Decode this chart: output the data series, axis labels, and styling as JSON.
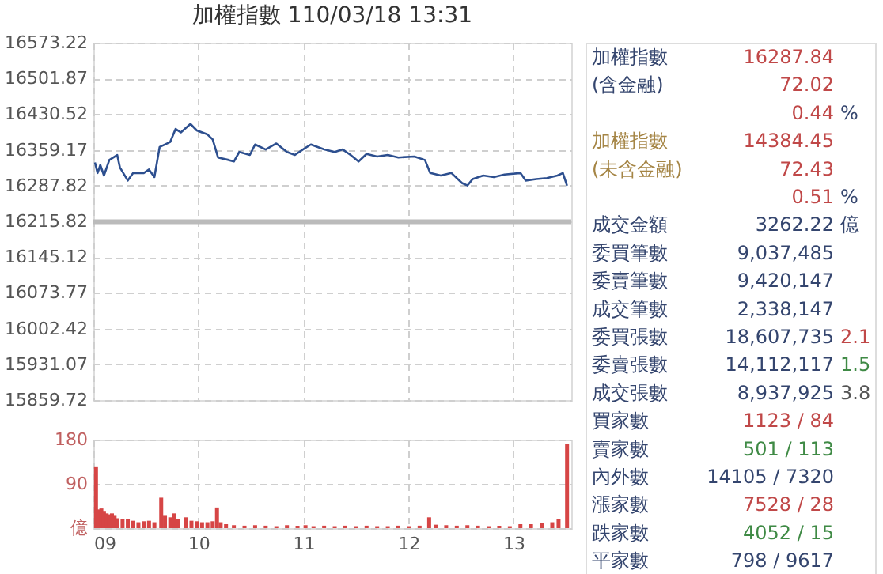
{
  "chart_data": [
    {
      "type": "line",
      "title": "加權指數 110/03/18 13:31",
      "x": [
        9.015,
        9.04,
        9.066,
        9.101,
        9.152,
        9.227,
        9.253,
        9.328,
        9.379,
        9.48,
        9.53,
        9.581,
        9.631,
        9.732,
        9.783,
        9.833,
        9.924,
        9.985,
        10.086,
        10.136,
        10.187,
        10.288,
        10.338,
        10.389,
        10.49,
        10.54,
        10.641,
        10.742,
        10.843,
        10.919,
        10.995,
        11.071,
        11.197,
        11.298,
        11.374,
        11.449,
        11.525,
        11.601,
        11.702,
        11.803,
        11.904,
        12.056,
        12.157,
        12.207,
        12.308,
        12.409,
        12.51,
        12.561,
        12.611,
        12.712,
        12.813,
        12.914,
        13.066,
        13.116,
        13.217,
        13.318,
        13.419,
        13.47,
        13.51
      ],
      "series": [
        {
          "color": "#2d4f8f",
          "values": [
            16334,
            16313,
            16329,
            16308,
            16339,
            16349,
            16324,
            16298,
            16313,
            16313,
            16320,
            16305,
            16365,
            16375,
            16401,
            16394,
            16411,
            16398,
            16390,
            16380,
            16344,
            16339,
            16336,
            16355,
            16349,
            16370,
            16360,
            16372,
            16355,
            16349,
            16360,
            16370,
            16360,
            16355,
            16360,
            16349,
            16336,
            16351,
            16346,
            16349,
            16344,
            16346,
            16339,
            16313,
            16308,
            16313,
            16293,
            16288,
            16301,
            16308,
            16305,
            16310,
            16313,
            16298,
            16301,
            16303,
            16308,
            16313,
            16287.84
          ]
        }
      ],
      "xlim": [
        9,
        13.55
      ],
      "ylim": [
        15859.72,
        16573.22
      ],
      "yticks": [
        {
          "value": 15859.72,
          "label": "15859.72"
        },
        {
          "value": 15931.07,
          "label": "15931.07"
        },
        {
          "value": 16002.42,
          "label": "16002.42"
        },
        {
          "value": 16073.77,
          "label": "16073.77"
        },
        {
          "value": 16145.12,
          "label": "16145.12"
        },
        {
          "value": 16215.82,
          "label": "16215.82"
        },
        {
          "value": 16287.82,
          "label": "16287.82"
        },
        {
          "value": 16359.17,
          "label": "16359.17"
        },
        {
          "value": 16430.52,
          "label": "16430.52"
        },
        {
          "value": 16501.87,
          "label": "16501.87"
        },
        {
          "value": 16573.22,
          "label": "16573.22"
        }
      ],
      "xticks": [
        9,
        10,
        11,
        12,
        13
      ],
      "ref_lines": [
        {
          "axis": "y",
          "value": 16215.82,
          "color": "#bbbbbb"
        }
      ],
      "grid": true,
      "tick_labels": "y"
    },
    {
      "type": "bar",
      "x": [
        9.025,
        9.051,
        9.076,
        9.101,
        9.126,
        9.152,
        9.177,
        9.202,
        9.227,
        9.278,
        9.328,
        9.379,
        9.429,
        9.48,
        9.53,
        9.581,
        9.646,
        9.682,
        9.732,
        9.768,
        9.808,
        9.884,
        9.934,
        9.985,
        10.035,
        10.086,
        10.136,
        10.177,
        10.212,
        10.263,
        10.338,
        10.439,
        10.54,
        10.641,
        10.742,
        10.843,
        10.944,
        11.02,
        11.096,
        11.197,
        11.298,
        11.399,
        11.5,
        11.601,
        11.702,
        11.803,
        11.904,
        12.005,
        12.106,
        12.197,
        12.258,
        12.359,
        12.46,
        12.561,
        12.662,
        12.763,
        12.864,
        12.965,
        13.066,
        13.167,
        13.268,
        13.369,
        13.429,
        13.51
      ],
      "series": [
        {
          "color": "#d64545",
          "values": [
            124,
            38,
            40,
            35,
            30,
            28,
            30,
            25,
            20,
            18,
            18,
            15,
            12,
            14,
            15,
            12,
            62,
            25,
            22,
            30,
            18,
            22,
            15,
            14,
            12,
            12,
            14,
            42,
            12,
            8,
            6,
            5,
            6,
            5,
            4,
            6,
            5,
            6,
            4,
            5,
            4,
            5,
            4,
            5,
            4,
            4,
            5,
            4,
            5,
            22,
            7,
            6,
            5,
            6,
            5,
            4,
            5,
            4,
            8,
            8,
            10,
            12,
            18,
            172
          ]
        }
      ],
      "xlim": [
        9,
        13.55
      ],
      "ylim": [
        0,
        180
      ],
      "yticks": [
        {
          "value": 0,
          "label": "億"
        },
        90,
        180
      ],
      "xticks": [
        {
          "value": 9,
          "label": "09"
        },
        {
          "value": 10,
          "label": "10"
        },
        {
          "value": 11,
          "label": "11"
        },
        {
          "value": 12,
          "label": "12"
        },
        {
          "value": 13,
          "label": "13"
        }
      ],
      "grid": true
    },
    {
      "type": "other",
      "annotations": [
        "加權指數",
        "16287.84",
        "(含金融)",
        "72.02",
        "0.44",
        "%",
        "加權指數",
        "14384.45",
        "(未含金融)",
        "72.43",
        "0.51",
        "%",
        "成交金額",
        "3262.22",
        "億",
        "委買筆數",
        "9,037,485",
        "委賣筆數",
        "9,420,147",
        "成交筆數",
        "2,338,147",
        "委買張數",
        "18,607,735",
        "2.1",
        "委賣張數",
        "14,112,117",
        "1.5",
        "成交張數",
        "8,937,925",
        "3.8",
        "買家數",
        "1123 / 84",
        "賣家數",
        "501 / 113",
        "內外數",
        "14105 / 7320",
        "漲家數",
        "7528 / 28",
        "跌家數",
        "4052 / 15",
        "平家數",
        "798 / 9617"
      ]
    }
  ]
}
